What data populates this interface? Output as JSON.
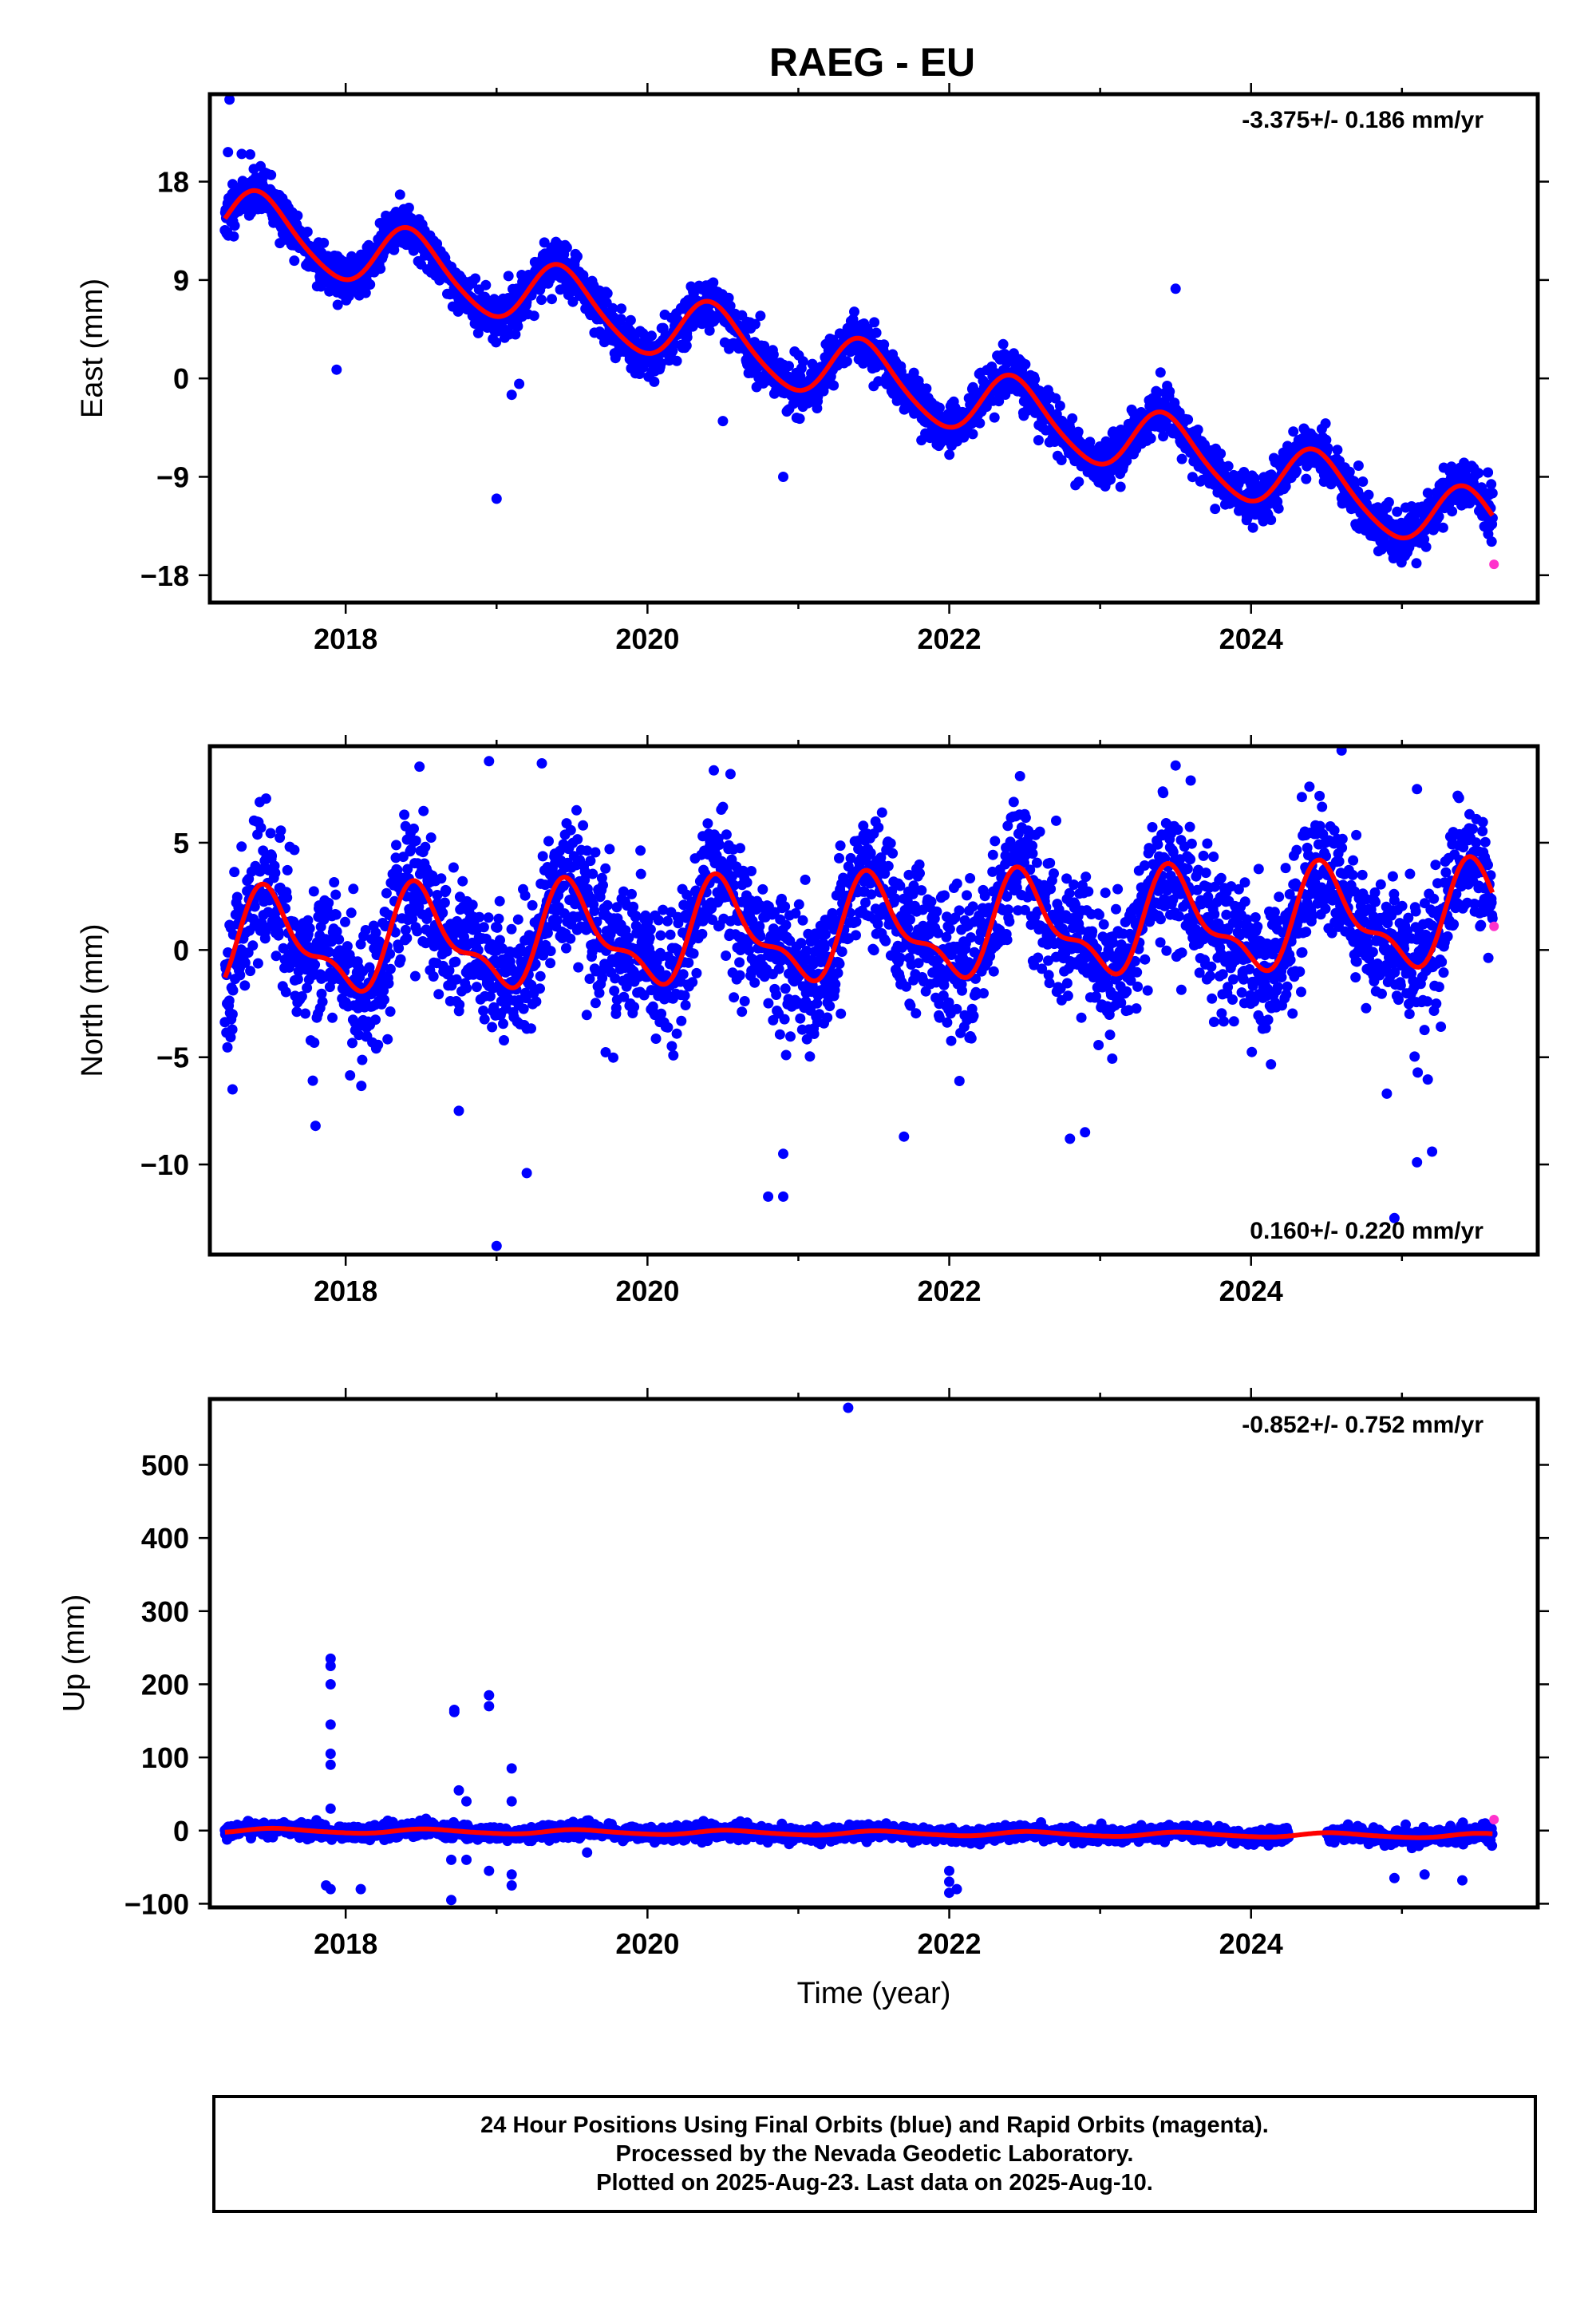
{
  "title": "RAEG - EU",
  "colors": {
    "final": "#0000ff",
    "rapid": "#ff33cc",
    "model": "#ff0000",
    "axis": "#000000"
  },
  "footer": {
    "line1": "24 Hour Positions Using Final Orbits (blue) and Rapid Orbits (magenta).",
    "line2": "Processed by the Nevada Geodetic Laboratory.",
    "line3": "Plotted on 2025-Aug-23. Last data on 2025-Aug-10."
  },
  "chart_data": [
    {
      "type": "scatter",
      "component": "east",
      "ylabel": "East (mm)",
      "xlabel": "",
      "rate_label": "-3.375+/- 0.186 mm/yr",
      "rate_position": "top-right",
      "xlim": [
        2017.1,
        2025.9
      ],
      "ylim": [
        -20.5,
        26
      ],
      "x_ticks": [
        2018,
        2020,
        2022,
        2024
      ],
      "y_ticks": [
        -18,
        -9,
        0,
        9,
        18
      ],
      "model": {
        "start": 2017.2,
        "end": 2025.6,
        "offset_at_start": 14.6,
        "rate": -3.375,
        "annual_amp": 3.0,
        "annual_peak": 0.44,
        "semiannual_amp": 0.4
      },
      "scatter": {
        "sigma": 1.1,
        "count": 3000,
        "seed": 11
      },
      "outliers": [
        [
          2017.23,
          25.5
        ],
        [
          2017.22,
          20.7
        ],
        [
          2017.94,
          0.8
        ],
        [
          2019.0,
          -11.0
        ],
        [
          2019.1,
          -1.5
        ],
        [
          2019.15,
          -0.5
        ],
        [
          2020.5,
          -3.9
        ],
        [
          2020.9,
          -9.0
        ],
        [
          2023.5,
          8.2
        ],
        [
          2025.57,
          -8.6
        ],
        [
          2025.6,
          -10.5
        ]
      ],
      "rapid": [
        [
          2025.61,
          -17.0
        ]
      ]
    },
    {
      "type": "scatter",
      "component": "north",
      "ylabel": "North (mm)",
      "xlabel": "",
      "rate_label": "0.160+/- 0.220 mm/yr",
      "rate_position": "bottom-right",
      "xlim": [
        2017.1,
        2025.9
      ],
      "ylim": [
        -14.2,
        9.5
      ],
      "x_ticks": [
        2018,
        2020,
        2022,
        2024
      ],
      "y_ticks": [
        -10,
        -5,
        0,
        5
      ],
      "model": {
        "start": 2017.2,
        "end": 2025.6,
        "offset_at_start": 0.2,
        "rate": 0.16,
        "annual_amp": 2.1,
        "annual_peak": 0.5,
        "semiannual_amp": 0.9
      },
      "scatter": {
        "sigma": 1.6,
        "count": 3000,
        "seed": 23
      },
      "outliers": [
        [
          2017.25,
          -6.5
        ],
        [
          2017.8,
          -8.2
        ],
        [
          2018.75,
          -7.5
        ],
        [
          2018.95,
          8.8
        ],
        [
          2019.0,
          -13.8
        ],
        [
          2019.2,
          -10.4
        ],
        [
          2019.3,
          8.7
        ],
        [
          2020.55,
          8.2
        ],
        [
          2020.8,
          -11.5
        ],
        [
          2020.9,
          -11.5
        ],
        [
          2020.9,
          -9.5
        ],
        [
          2021.7,
          -8.7
        ],
        [
          2022.8,
          -8.8
        ],
        [
          2022.9,
          -8.5
        ],
        [
          2023.5,
          8.6
        ],
        [
          2023.6,
          7.9
        ],
        [
          2024.6,
          9.3
        ],
        [
          2024.9,
          -6.7
        ],
        [
          2025.1,
          7.5
        ],
        [
          2025.1,
          -9.9
        ],
        [
          2025.2,
          -9.4
        ],
        [
          2024.95,
          -12.5
        ]
      ],
      "rapid": [
        [
          2025.61,
          1.1
        ]
      ]
    },
    {
      "type": "scatter",
      "component": "up",
      "ylabel": "Up (mm)",
      "xlabel": "Time (year)",
      "rate_label": "-0.852+/- 0.752 mm/yr",
      "rate_position": "top-right",
      "xlim": [
        2017.1,
        2025.9
      ],
      "ylim": [
        -105,
        590
      ],
      "x_ticks": [
        2018,
        2020,
        2022,
        2024
      ],
      "y_ticks": [
        -100,
        0,
        100,
        200,
        300,
        400,
        500
      ],
      "gap": [
        2024.25,
        2024.5
      ],
      "model": {
        "start": 2017.2,
        "end": 2025.6,
        "offset_at_start": 0,
        "rate": -0.852,
        "annual_amp": 3.0,
        "annual_peak": 0.55,
        "semiannual_amp": 0.5
      },
      "scatter": {
        "sigma": 5,
        "count": 2600,
        "seed": 37
      },
      "outliers": [
        [
          2017.9,
          235
        ],
        [
          2017.9,
          225
        ],
        [
          2017.9,
          200
        ],
        [
          2017.9,
          145
        ],
        [
          2017.9,
          105
        ],
        [
          2017.9,
          90
        ],
        [
          2017.9,
          30
        ],
        [
          2017.87,
          -75
        ],
        [
          2017.9,
          -80
        ],
        [
          2018.1,
          -80
        ],
        [
          2018.7,
          -95
        ],
        [
          2018.72,
          165
        ],
        [
          2018.72,
          162
        ],
        [
          2018.75,
          55
        ],
        [
          2018.8,
          40
        ],
        [
          2018.7,
          -40
        ],
        [
          2018.8,
          -40
        ],
        [
          2018.95,
          185
        ],
        [
          2018.95,
          170
        ],
        [
          2019.1,
          85
        ],
        [
          2019.1,
          40
        ],
        [
          2019.1,
          -60
        ],
        [
          2019.1,
          -75
        ],
        [
          2018.95,
          -55
        ],
        [
          2019.6,
          -30
        ],
        [
          2022.0,
          -55
        ],
        [
          2022.0,
          -70
        ],
        [
          2022.0,
          -85
        ],
        [
          2022.05,
          -80
        ],
        [
          2024.95,
          -65
        ],
        [
          2025.15,
          -60
        ],
        [
          2025.4,
          -68
        ],
        [
          2021.33,
          578
        ]
      ],
      "rapid": [
        [
          2025.61,
          15
        ]
      ]
    }
  ]
}
